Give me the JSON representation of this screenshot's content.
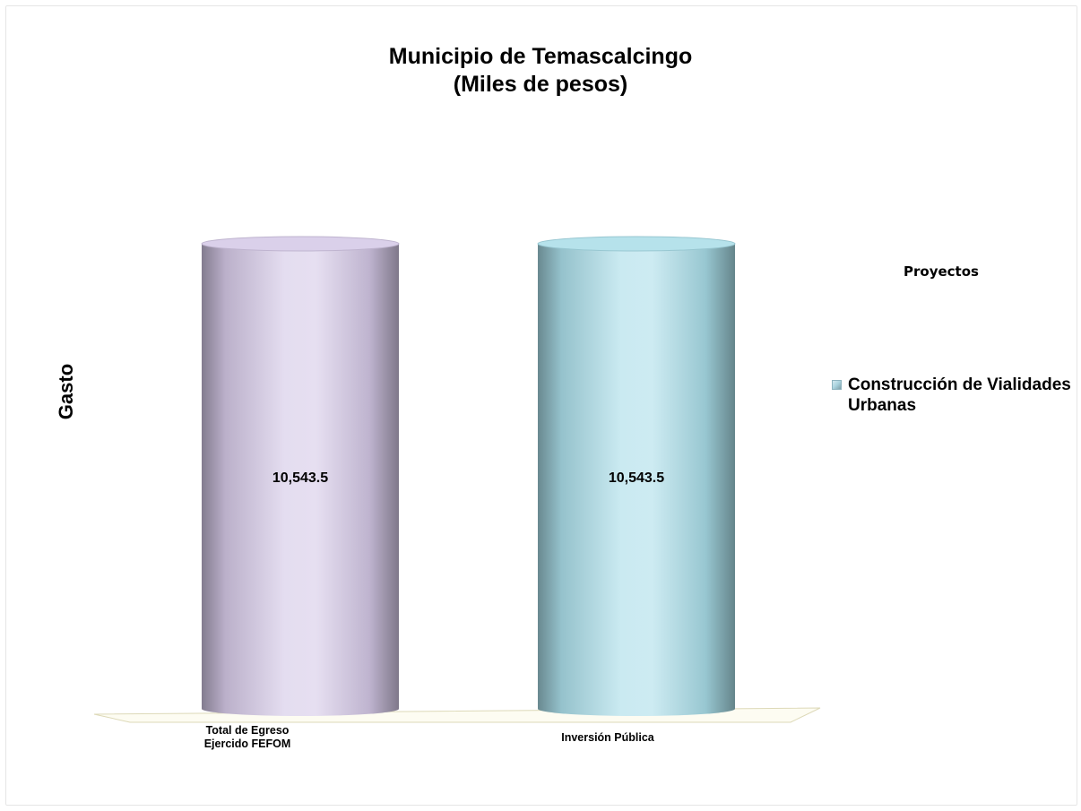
{
  "chart_data": {
    "type": "bar",
    "title": [
      "Municipio de Temascalcingo",
      "(Miles de pesos)"
    ],
    "ylabel": "Gasto",
    "categories": [
      [
        "Total de Egreso",
        "Ejercido FEFOM"
      ],
      [
        "Inversión Pública"
      ]
    ],
    "values": [
      10543.5,
      10543.5
    ],
    "data_labels": [
      "10,543.5",
      "10,543.5"
    ],
    "bar_colors": [
      "#d4c8e6",
      "#a9dde8"
    ],
    "legend": {
      "title": "Proyectos",
      "placement": "right",
      "entries": [
        {
          "label": "Construcción de Vialidades Urbanas",
          "color": "#a9d3de"
        }
      ]
    },
    "ylim": [
      0,
      10543.5
    ],
    "grid": false,
    "style": "3d-cylinder"
  }
}
